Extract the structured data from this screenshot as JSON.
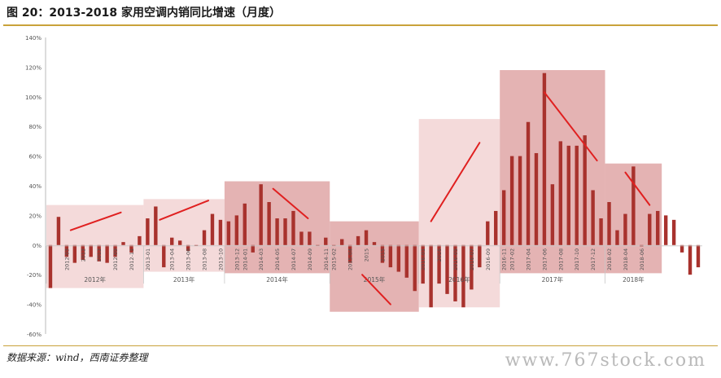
{
  "figure": {
    "title": "图 20：2013-2018 家用空调内销同比增速（月度）",
    "source": "数据来源：wind，西南证券整理",
    "watermark": "www.767stock.com"
  },
  "colors": {
    "bar": "#a8322d",
    "box_light": "#f2d3d3",
    "box_dark": "#dfa6a6",
    "arrow": "#e02020",
    "axis_text": "#555555",
    "rule": "#c9a23a"
  },
  "chart_data": {
    "type": "bar",
    "ylim": [
      -60,
      140
    ],
    "yticks": [
      {
        "value": 140,
        "label": "140%"
      },
      {
        "value": 120,
        "label": "120%"
      },
      {
        "value": 100,
        "label": "100%"
      },
      {
        "value": 80,
        "label": "80%"
      },
      {
        "value": 60,
        "label": "60%"
      },
      {
        "value": 40,
        "label": "40%"
      },
      {
        "value": 20,
        "label": "20%"
      },
      {
        "value": 0,
        "label": "0%"
      },
      {
        "value": -20,
        "label": "-20%"
      },
      {
        "value": -40,
        "label": "-40%"
      },
      {
        "value": -60,
        "label": "-60%"
      }
    ],
    "grid": false,
    "legend": "none",
    "years": [
      {
        "label": "2012年",
        "start": 0,
        "end": 12,
        "shade": "light",
        "ticks": [
          {
            "index": 2,
            "label": "2012-03"
          },
          {
            "index": 4,
            "label": "2012"
          },
          {
            "index": 6,
            "label": "2012"
          },
          {
            "index": 8,
            "label": "2012-09"
          },
          {
            "index": 10,
            "label": "2012-11"
          }
        ],
        "trend": {
          "from": [
            2.5,
            10
          ],
          "to": [
            8.7,
            22
          ]
        }
      },
      {
        "label": "2013年",
        "start": 12,
        "end": 22,
        "shade": "light",
        "ticks": [
          {
            "index": 12,
            "label": "2013-01"
          },
          {
            "index": 15,
            "label": "2013-04"
          },
          {
            "index": 17,
            "label": "2013-06"
          },
          {
            "index": 19,
            "label": "2013-08"
          },
          {
            "index": 21,
            "label": "2013-10"
          },
          {
            "index": 23,
            "label": "2013-12"
          }
        ],
        "trend": {
          "from": [
            13.5,
            17
          ],
          "to": [
            19.5,
            30
          ]
        }
      },
      {
        "label": "2014年",
        "start": 22,
        "end": 35,
        "shade": "dark",
        "ticks": [
          {
            "index": 24,
            "label": "2014-01"
          },
          {
            "index": 26,
            "label": "2014-03"
          },
          {
            "index": 28,
            "label": "2014-05"
          },
          {
            "index": 30,
            "label": "2014-07"
          },
          {
            "index": 32,
            "label": "2014-09"
          },
          {
            "index": 34,
            "label": "2014-11"
          }
        ],
        "trend": {
          "from": [
            27.5,
            38
          ],
          "to": [
            31.8,
            18
          ]
        }
      },
      {
        "label": "2015年",
        "start": 35,
        "end": 46,
        "shade": "dark",
        "ticks": [
          {
            "index": 35,
            "label": "2015-02"
          },
          {
            "index": 37,
            "label": "2015-04"
          },
          {
            "index": 39,
            "label": "2015"
          },
          {
            "index": 41,
            "label": "2015"
          }
        ],
        "trend": {
          "from": [
            38.5,
            -20
          ],
          "to": [
            42,
            -40
          ]
        }
      },
      {
        "label": "2016年",
        "start": 46,
        "end": 56,
        "shade": "light",
        "ticks": [
          {
            "index": 46,
            "label": "2016-01"
          },
          {
            "index": 48,
            "label": "2016"
          },
          {
            "index": 50,
            "label": "2016-05"
          },
          {
            "index": 52,
            "label": "2016-07"
          },
          {
            "index": 54,
            "label": "2016-09"
          },
          {
            "index": 56,
            "label": "2016-11"
          }
        ],
        "trend": {
          "from": [
            47,
            16
          ],
          "to": [
            53,
            69
          ]
        }
      },
      {
        "label": "2017年",
        "start": 56,
        "end": 69,
        "shade": "dark",
        "ticks": [
          {
            "index": 57,
            "label": "2017-02"
          },
          {
            "index": 59,
            "label": "2017-04"
          },
          {
            "index": 61,
            "label": "2017-06"
          },
          {
            "index": 63,
            "label": "2017-08"
          },
          {
            "index": 65,
            "label": "2017-10"
          },
          {
            "index": 67,
            "label": "2017-12"
          }
        ],
        "trend": {
          "from": [
            61,
            103
          ],
          "to": [
            67.5,
            57
          ]
        }
      },
      {
        "label": "2018年",
        "start": 69,
        "end": 76,
        "shade": "dark",
        "ticks": [
          {
            "index": 69,
            "label": "2018-02"
          },
          {
            "index": 71,
            "label": "2018-04"
          },
          {
            "index": 73,
            "label": "2018-06"
          }
        ],
        "trend": {
          "from": [
            71,
            49
          ],
          "to": [
            74,
            27
          ]
        }
      }
    ],
    "values": [
      -29,
      19,
      -8,
      -12,
      -10,
      -8,
      -11,
      -12,
      -8,
      2,
      -5,
      6,
      18,
      26,
      -15,
      5,
      3,
      -4,
      0,
      10,
      21,
      17,
      16,
      20,
      28,
      -5,
      41,
      29,
      18,
      18,
      23,
      9,
      9,
      0,
      5,
      0,
      4,
      -12,
      6,
      10,
      2,
      -12,
      -15,
      -18,
      -22,
      -31,
      -26,
      -42,
      -26,
      -33,
      -38,
      -42,
      -30,
      -15,
      16,
      23,
      37,
      60,
      60,
      83,
      62,
      116,
      41,
      70,
      67,
      67,
      74,
      37,
      18,
      29,
      10,
      21,
      53,
      -1,
      21,
      23,
      20,
      17,
      -5,
      -20,
      -15
    ],
    "box_ranges": [
      {
        "y_top": 27,
        "y_bottom": -29
      },
      {
        "y_top": 31,
        "y_bottom": -18
      },
      {
        "y_top": 43,
        "y_bottom": -19
      },
      {
        "y_top": 16,
        "y_bottom": -45
      },
      {
        "y_top": 85,
        "y_bottom": -42
      },
      {
        "y_top": 118,
        "y_bottom": -19
      },
      {
        "y_top": 55,
        "y_bottom": -19
      }
    ]
  }
}
